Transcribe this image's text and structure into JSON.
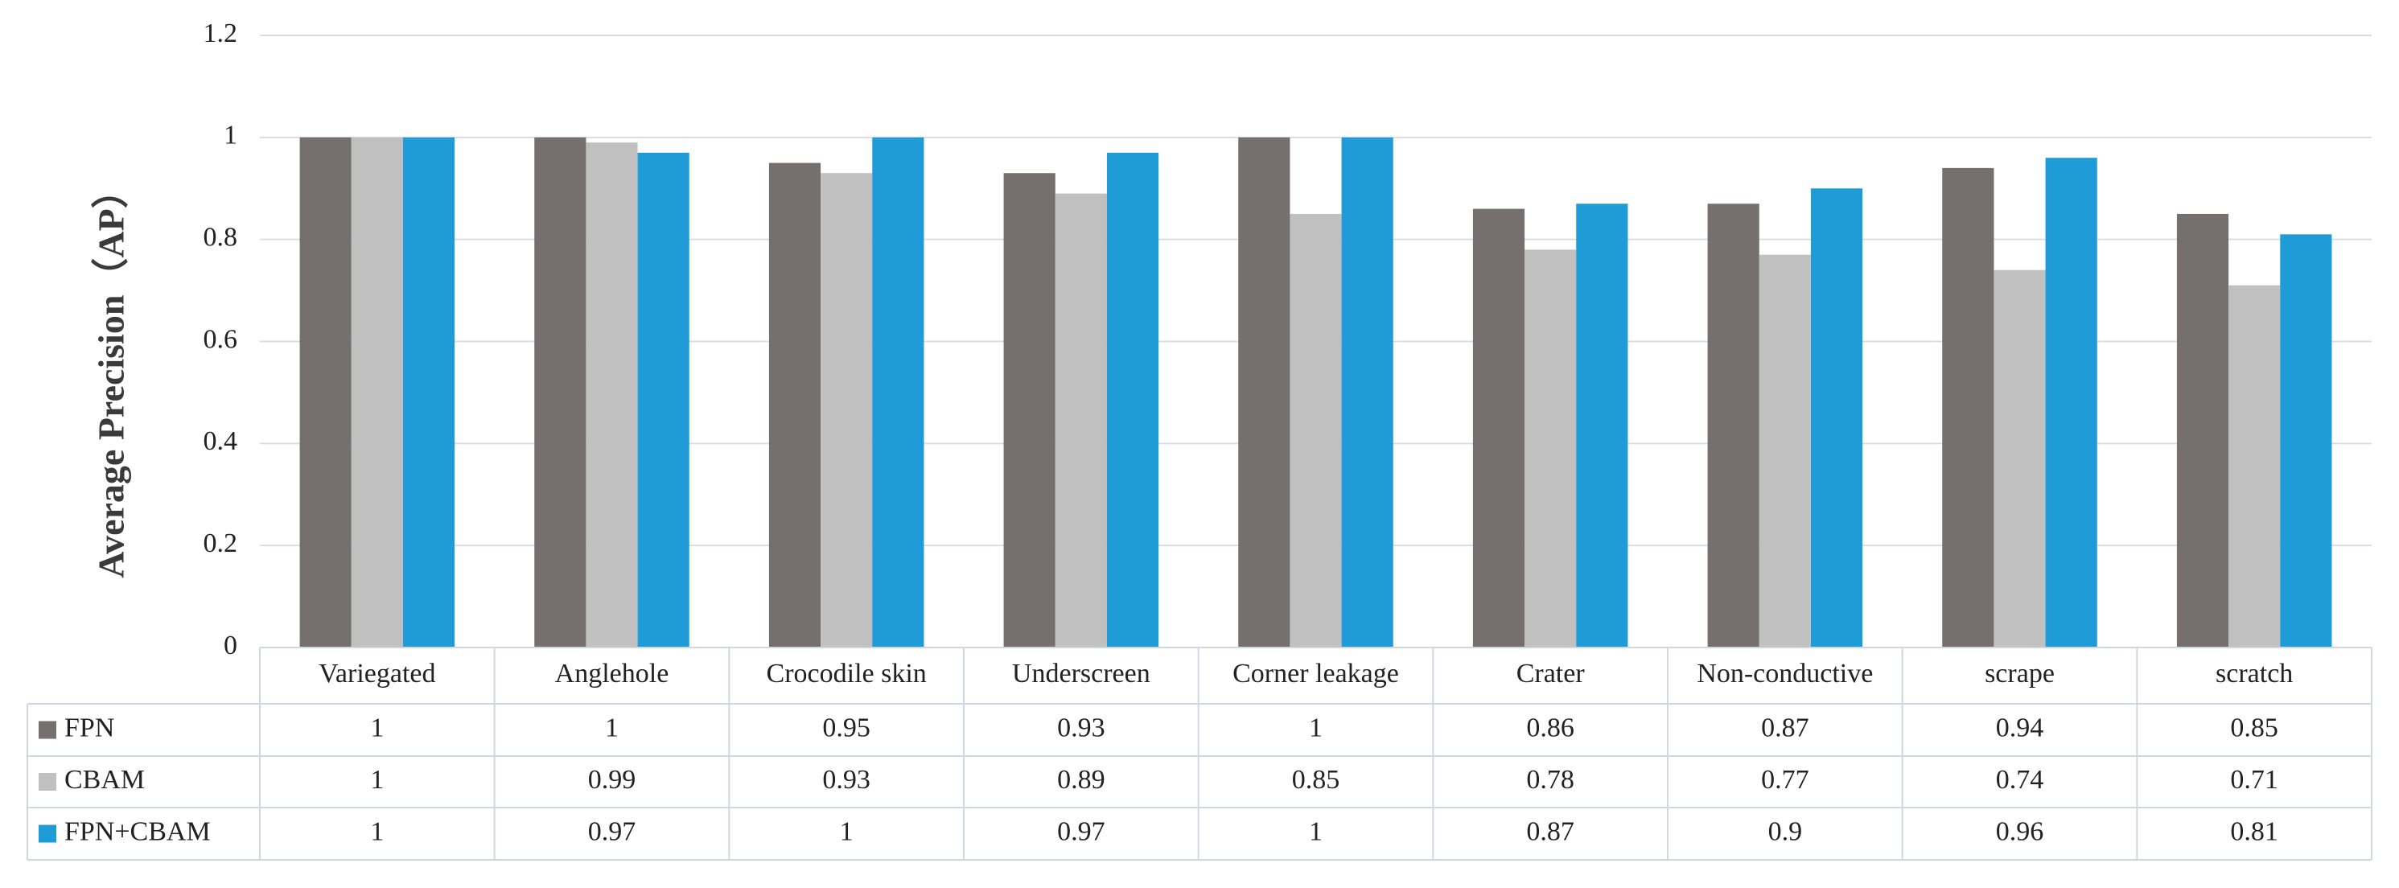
{
  "chart_data": {
    "type": "bar",
    "y_label": "Average Precision（AP）",
    "categories": [
      "Variegated",
      "Anglehole",
      "Crocodile skin",
      "Underscreen",
      "Corner leakage",
      "Crater",
      "Non-conductive",
      "scrape",
      "scratch"
    ],
    "series": [
      {
        "name": "FPN",
        "color": "#756f6f",
        "values": [
          1,
          1,
          0.95,
          0.93,
          1,
          0.86,
          0.87,
          0.94,
          0.85
        ]
      },
      {
        "name": "CBAM",
        "color": "#c0c0c0",
        "values": [
          1,
          0.99,
          0.93,
          0.89,
          0.85,
          0.78,
          0.77,
          0.74,
          0.71
        ]
      },
      {
        "name": "FPN+CBAM",
        "color": "#1f9bd7",
        "values": [
          1,
          0.97,
          1,
          0.97,
          1,
          0.87,
          0.9,
          0.96,
          0.81
        ]
      }
    ],
    "ylim": [
      0,
      1.2
    ],
    "yticks": [
      0,
      0.2,
      0.4,
      0.6,
      0.8,
      1,
      1.2
    ],
    "grid": true,
    "data_table": true
  }
}
